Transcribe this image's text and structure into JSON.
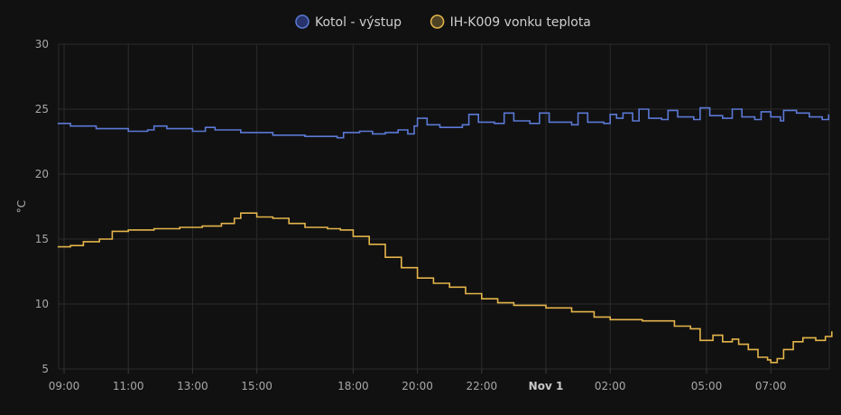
{
  "chart_data": {
    "type": "line",
    "step": true,
    "title": "",
    "ylabel": "°C",
    "xlabel": "",
    "ylim": [
      5,
      30
    ],
    "yticks": [
      5,
      10,
      15,
      20,
      25,
      30
    ],
    "x_unit": "hours since 09:00",
    "xlim": [
      -0.2,
      23.9
    ],
    "xticks": [
      {
        "label": "09:00",
        "x": 0,
        "bold": false
      },
      {
        "label": "11:00",
        "x": 2,
        "bold": false
      },
      {
        "label": "13:00",
        "x": 4,
        "bold": false
      },
      {
        "label": "15:00",
        "x": 6,
        "bold": false
      },
      {
        "label": "18:00",
        "x": 9,
        "bold": false
      },
      {
        "label": "20:00",
        "x": 11,
        "bold": false
      },
      {
        "label": "22:00",
        "x": 13,
        "bold": false
      },
      {
        "label": "Nov 1",
        "x": 15,
        "bold": true
      },
      {
        "label": "02:00",
        "x": 17,
        "bold": false
      },
      {
        "label": "05:00",
        "x": 20,
        "bold": false
      },
      {
        "label": "07:00",
        "x": 22,
        "bold": false
      }
    ],
    "grid": true,
    "legend_position": "top-center",
    "series": [
      {
        "name": "Kotol - výstup",
        "color": "#5b79d6",
        "fill": "#27336a",
        "points": [
          [
            -0.2,
            23.9
          ],
          [
            0.2,
            23.7
          ],
          [
            1,
            23.5
          ],
          [
            2,
            23.3
          ],
          [
            2.6,
            23.4
          ],
          [
            2.8,
            23.7
          ],
          [
            3.2,
            23.5
          ],
          [
            4,
            23.3
          ],
          [
            4.3,
            23.3
          ],
          [
            4.4,
            23.6
          ],
          [
            4.7,
            23.4
          ],
          [
            5.5,
            23.2
          ],
          [
            6.5,
            23.0
          ],
          [
            7.5,
            22.9
          ],
          [
            8.5,
            22.8
          ],
          [
            8.7,
            23.2
          ],
          [
            9.2,
            23.3
          ],
          [
            9.6,
            23.1
          ],
          [
            10.0,
            23.2
          ],
          [
            10.4,
            23.4
          ],
          [
            10.7,
            23.1
          ],
          [
            10.9,
            23.7
          ],
          [
            11.0,
            24.3
          ],
          [
            11.3,
            23.8
          ],
          [
            11.7,
            23.6
          ],
          [
            12.1,
            23.6
          ],
          [
            12.4,
            23.8
          ],
          [
            12.6,
            24.6
          ],
          [
            12.9,
            24.0
          ],
          [
            13.4,
            23.9
          ],
          [
            13.7,
            24.7
          ],
          [
            14.0,
            24.1
          ],
          [
            14.5,
            23.9
          ],
          [
            14.8,
            24.7
          ],
          [
            15.1,
            24.0
          ],
          [
            15.8,
            23.8
          ],
          [
            16.0,
            24.7
          ],
          [
            16.3,
            24.0
          ],
          [
            16.8,
            23.9
          ],
          [
            17.0,
            24.6
          ],
          [
            17.2,
            24.3
          ],
          [
            17.4,
            24.7
          ],
          [
            17.7,
            24.1
          ],
          [
            17.9,
            25.0
          ],
          [
            18.2,
            24.3
          ],
          [
            18.6,
            24.2
          ],
          [
            18.8,
            24.9
          ],
          [
            19.1,
            24.4
          ],
          [
            19.6,
            24.2
          ],
          [
            19.8,
            25.1
          ],
          [
            20.1,
            24.5
          ],
          [
            20.5,
            24.3
          ],
          [
            20.8,
            25.0
          ],
          [
            21.1,
            24.4
          ],
          [
            21.5,
            24.2
          ],
          [
            21.7,
            24.8
          ],
          [
            22.0,
            24.4
          ],
          [
            22.3,
            24.1
          ],
          [
            22.4,
            24.9
          ],
          [
            22.8,
            24.7
          ],
          [
            23.2,
            24.4
          ],
          [
            23.6,
            24.2
          ],
          [
            23.8,
            24.6
          ]
        ]
      },
      {
        "name": "IH-K009 vonku teplota",
        "color": "#e4b54a",
        "fill": "#4e4225",
        "points": [
          [
            -0.2,
            14.4
          ],
          [
            0.2,
            14.5
          ],
          [
            0.6,
            14.8
          ],
          [
            1.1,
            15.0
          ],
          [
            1.5,
            15.6
          ],
          [
            2.0,
            15.7
          ],
          [
            2.8,
            15.8
          ],
          [
            3.6,
            15.9
          ],
          [
            4.3,
            16.0
          ],
          [
            4.9,
            16.2
          ],
          [
            5.3,
            16.6
          ],
          [
            5.5,
            17.0
          ],
          [
            6.0,
            16.7
          ],
          [
            6.5,
            16.6
          ],
          [
            7.0,
            16.2
          ],
          [
            7.5,
            15.9
          ],
          [
            8.2,
            15.8
          ],
          [
            8.6,
            15.7
          ],
          [
            9.0,
            15.2
          ],
          [
            9.5,
            14.6
          ],
          [
            10.0,
            13.6
          ],
          [
            10.5,
            12.8
          ],
          [
            11.0,
            12.0
          ],
          [
            11.5,
            11.6
          ],
          [
            12.0,
            11.3
          ],
          [
            12.5,
            10.8
          ],
          [
            13.0,
            10.4
          ],
          [
            13.5,
            10.1
          ],
          [
            14.0,
            9.9
          ],
          [
            15.0,
            9.7
          ],
          [
            15.8,
            9.4
          ],
          [
            16.5,
            9.0
          ],
          [
            17.0,
            8.8
          ],
          [
            18.0,
            8.7
          ],
          [
            19.0,
            8.3
          ],
          [
            19.5,
            8.1
          ],
          [
            19.8,
            7.2
          ],
          [
            20.2,
            7.6
          ],
          [
            20.5,
            7.1
          ],
          [
            20.8,
            7.3
          ],
          [
            21.0,
            6.9
          ],
          [
            21.3,
            6.5
          ],
          [
            21.6,
            5.9
          ],
          [
            21.9,
            5.7
          ],
          [
            22.0,
            5.5
          ],
          [
            22.2,
            5.8
          ],
          [
            22.4,
            6.5
          ],
          [
            22.7,
            7.1
          ],
          [
            23.0,
            7.4
          ],
          [
            23.4,
            7.2
          ],
          [
            23.7,
            7.5
          ],
          [
            23.9,
            7.9
          ]
        ]
      }
    ]
  }
}
